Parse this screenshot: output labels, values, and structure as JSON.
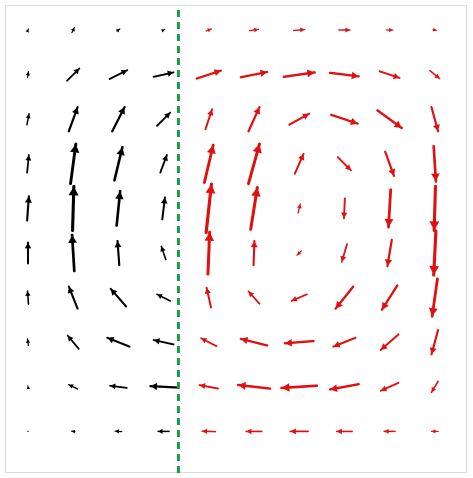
{
  "chart_data": {
    "type": "quiver",
    "title": "",
    "xlabel": "",
    "ylabel": "",
    "grid": false,
    "legend": "none",
    "x_grid": [
      0,
      1,
      2,
      3,
      4,
      5,
      6,
      7,
      8,
      9
    ],
    "y_grid": [
      0,
      1,
      2,
      3,
      4,
      5,
      6,
      7,
      8,
      9
    ],
    "divider": {
      "x": 3.35,
      "style": "dashed",
      "color": "#1a9a4a"
    },
    "series": [
      {
        "color": "#000000",
        "vectors": [
          [
            0,
            0,
            0.02,
            0.05
          ],
          [
            1,
            0,
            0.06,
            0.12
          ],
          [
            2,
            0,
            0.07,
            0.05
          ],
          [
            3,
            0,
            0.06,
            0.03
          ],
          [
            0,
            1,
            0.02,
            0.14
          ],
          [
            1,
            1,
            0.28,
            0.28
          ],
          [
            2,
            1,
            0.4,
            0.2
          ],
          [
            3,
            1,
            0.45,
            0.1
          ],
          [
            0,
            2,
            0.05,
            0.25
          ],
          [
            1,
            2,
            0.2,
            0.55
          ],
          [
            2,
            2,
            0.28,
            0.55
          ],
          [
            3,
            2,
            0.3,
            0.3
          ],
          [
            0,
            3,
            0.04,
            0.4
          ],
          [
            1,
            3,
            0.12,
            0.9
          ],
          [
            2,
            3,
            0.18,
            0.75
          ],
          [
            3,
            3,
            0.15,
            0.4
          ],
          [
            0,
            4,
            0.04,
            0.55
          ],
          [
            1,
            4,
            0.03,
            1.0
          ],
          [
            2,
            4,
            0.08,
            0.78
          ],
          [
            3,
            4,
            0.06,
            0.5
          ],
          [
            0,
            5,
            0.0,
            0.48
          ],
          [
            1,
            5,
            -0.05,
            0.82
          ],
          [
            2,
            5,
            -0.04,
            0.55
          ],
          [
            3,
            5,
            -0.1,
            0.3
          ],
          [
            0,
            6,
            -0.02,
            0.3
          ],
          [
            1,
            6,
            -0.2,
            0.5
          ],
          [
            2,
            6,
            -0.35,
            0.4
          ],
          [
            3,
            6,
            -0.3,
            0.15
          ],
          [
            0,
            7,
            -0.02,
            0.15
          ],
          [
            1,
            7,
            -0.25,
            0.3
          ],
          [
            2,
            7,
            -0.5,
            0.2
          ],
          [
            3,
            7,
            -0.45,
            0.1
          ],
          [
            0,
            8,
            -0.01,
            0.05
          ],
          [
            1,
            8,
            -0.2,
            0.1
          ],
          [
            2,
            8,
            -0.38,
            0.05
          ],
          [
            3,
            8,
            -0.6,
            0.03
          ],
          [
            0,
            9,
            -0.01,
            0.01
          ],
          [
            1,
            9,
            -0.08,
            0.01
          ],
          [
            2,
            9,
            -0.15,
            0.01
          ],
          [
            3,
            9,
            -0.25,
            0.0
          ]
        ]
      },
      {
        "color": "#e01010",
        "vectors": [
          [
            4,
            0,
            0.12,
            0.05
          ],
          [
            5,
            0,
            0.2,
            0.03
          ],
          [
            6,
            0,
            0.25,
            0.02
          ],
          [
            7,
            0,
            0.25,
            0.0
          ],
          [
            8,
            0,
            0.15,
            0.0
          ],
          [
            9,
            0,
            0.08,
            -0.02
          ],
          [
            4,
            1,
            0.55,
            0.18
          ],
          [
            5,
            1,
            0.6,
            0.12
          ],
          [
            6,
            1,
            0.7,
            0.1
          ],
          [
            7,
            1,
            0.65,
            -0.08
          ],
          [
            8,
            1,
            0.45,
            -0.15
          ],
          [
            9,
            1,
            0.22,
            -0.18
          ],
          [
            4,
            2,
            0.15,
            0.45
          ],
          [
            5,
            2,
            0.25,
            0.55
          ],
          [
            6,
            2,
            0.45,
            0.25
          ],
          [
            7,
            2,
            0.6,
            -0.2
          ],
          [
            8,
            2,
            0.55,
            -0.4
          ],
          [
            9,
            2,
            0.15,
            -0.55
          ],
          [
            4,
            3,
            0.2,
            0.85
          ],
          [
            5,
            3,
            0.25,
            0.9
          ],
          [
            6,
            3,
            0.2,
            0.45
          ],
          [
            7,
            3,
            0.3,
            -0.3
          ],
          [
            8,
            3,
            0.2,
            -0.55
          ],
          [
            9,
            3,
            0.05,
            -0.8
          ],
          [
            4,
            4,
            0.12,
            1.1
          ],
          [
            5,
            4,
            0.15,
            0.95
          ],
          [
            6,
            4,
            0.05,
            0.2
          ],
          [
            7,
            4,
            -0.02,
            -0.45
          ],
          [
            8,
            4,
            -0.05,
            -0.85
          ],
          [
            9,
            4,
            -0.03,
            -1.0
          ],
          [
            4,
            5,
            0.04,
            0.95
          ],
          [
            5,
            5,
            0.02,
            0.55
          ],
          [
            6,
            5,
            -0.1,
            -0.1
          ],
          [
            7,
            5,
            -0.12,
            -0.4
          ],
          [
            8,
            5,
            -0.1,
            -0.6
          ],
          [
            9,
            5,
            -0.05,
            -1.0
          ],
          [
            4,
            6,
            -0.1,
            0.45
          ],
          [
            5,
            6,
            -0.25,
            0.28
          ],
          [
            6,
            6,
            -0.35,
            -0.15
          ],
          [
            7,
            6,
            -0.4,
            -0.5
          ],
          [
            8,
            6,
            -0.35,
            -0.55
          ],
          [
            9,
            6,
            -0.12,
            -0.85
          ],
          [
            4,
            7,
            -0.35,
            0.18
          ],
          [
            5,
            7,
            -0.6,
            0.15
          ],
          [
            6,
            7,
            -0.65,
            -0.05
          ],
          [
            7,
            7,
            -0.5,
            -0.2
          ],
          [
            8,
            7,
            -0.4,
            -0.35
          ],
          [
            9,
            7,
            -0.15,
            -0.55
          ],
          [
            4,
            8,
            -0.42,
            0.08
          ],
          [
            5,
            8,
            -0.72,
            0.08
          ],
          [
            6,
            8,
            -0.8,
            -0.05
          ],
          [
            7,
            8,
            -0.65,
            -0.12
          ],
          [
            8,
            8,
            -0.4,
            -0.18
          ],
          [
            9,
            8,
            -0.15,
            -0.25
          ],
          [
            4,
            9,
            -0.3,
            0.01
          ],
          [
            5,
            9,
            -0.35,
            0.0
          ],
          [
            6,
            9,
            -0.4,
            0.0
          ],
          [
            7,
            9,
            -0.35,
            0.0
          ],
          [
            8,
            9,
            -0.25,
            0.0
          ],
          [
            9,
            9,
            -0.15,
            0.0
          ]
        ]
      }
    ]
  }
}
